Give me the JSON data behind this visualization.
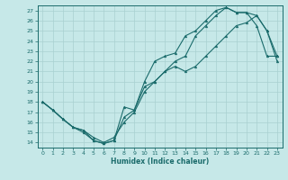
{
  "xlabel": "Humidex (Indice chaleur)",
  "bg_color": "#c6e8e8",
  "line_color": "#1a6b6b",
  "grid_color": "#a8d0d0",
  "xlim": [
    -0.5,
    23.5
  ],
  "ylim": [
    13.5,
    27.5
  ],
  "xticks": [
    0,
    1,
    2,
    3,
    4,
    5,
    6,
    7,
    8,
    9,
    10,
    11,
    12,
    13,
    14,
    15,
    16,
    17,
    18,
    19,
    20,
    21,
    22,
    23
  ],
  "yticks": [
    14,
    15,
    16,
    17,
    18,
    19,
    20,
    21,
    22,
    23,
    24,
    25,
    26,
    27
  ],
  "line1_x": [
    0,
    1,
    2,
    3,
    4,
    5,
    6,
    7,
    8,
    9,
    10,
    11,
    12,
    13,
    14,
    15,
    16,
    17,
    18,
    19,
    20,
    21,
    22,
    23
  ],
  "line1_y": [
    18.0,
    17.2,
    16.3,
    15.5,
    15.2,
    14.2,
    13.9,
    14.2,
    16.5,
    17.2,
    19.5,
    20.0,
    21.0,
    22.0,
    22.5,
    24.5,
    25.5,
    26.5,
    27.3,
    26.8,
    26.8,
    26.5,
    25.0,
    22.0
  ],
  "line2_x": [
    0,
    1,
    2,
    3,
    4,
    5,
    6,
    7,
    8,
    9,
    10,
    11,
    12,
    13,
    14,
    15,
    16,
    17,
    18,
    19,
    20,
    21,
    22,
    23
  ],
  "line2_y": [
    18.0,
    17.2,
    16.3,
    15.5,
    15.0,
    14.2,
    13.9,
    14.2,
    17.5,
    17.2,
    20.0,
    22.0,
    22.5,
    22.8,
    24.5,
    25.0,
    26.0,
    27.0,
    27.3,
    26.8,
    26.8,
    25.5,
    22.5,
    22.5
  ],
  "line3_x": [
    0,
    1,
    2,
    3,
    4,
    5,
    6,
    7,
    8,
    9,
    10,
    11,
    12,
    13,
    14,
    15,
    16,
    17,
    18,
    19,
    20,
    21,
    22,
    23
  ],
  "line3_y": [
    18.0,
    17.2,
    16.3,
    15.5,
    15.2,
    14.5,
    14.0,
    14.5,
    16.0,
    17.0,
    19.0,
    20.0,
    21.0,
    21.5,
    21.0,
    21.5,
    22.5,
    23.5,
    24.5,
    25.5,
    25.8,
    26.5,
    25.0,
    22.5
  ]
}
